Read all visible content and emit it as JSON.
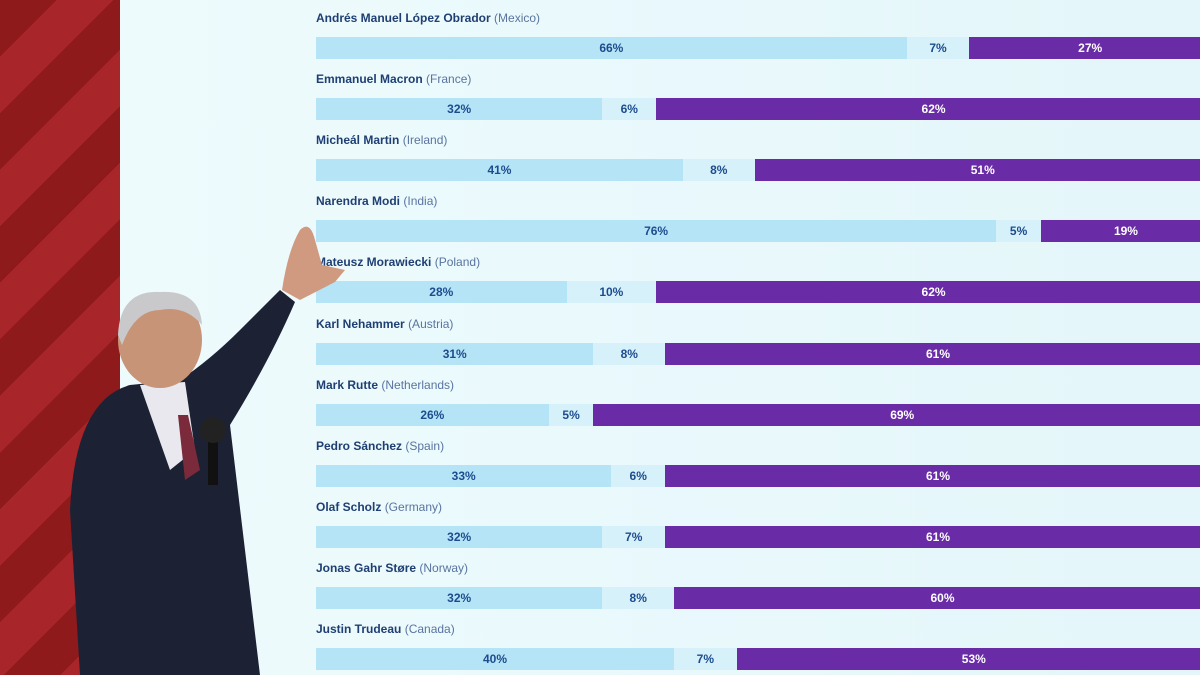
{
  "chart_data": {
    "type": "bar",
    "orientation": "horizontal",
    "stacked": true,
    "categories": [
      {
        "name": "Andrés Manuel López Obrador",
        "country": "(Mexico)"
      },
      {
        "name": "Emmanuel Macron",
        "country": "(France)"
      },
      {
        "name": "Micheál Martin",
        "country": "(Ireland)"
      },
      {
        "name": "Narendra Modi",
        "country": "(India)"
      },
      {
        "name": "Mateusz Morawiecki",
        "country": "(Poland)"
      },
      {
        "name": "Karl Nehammer",
        "country": "(Austria)"
      },
      {
        "name": "Mark Rutte",
        "country": "(Netherlands)"
      },
      {
        "name": "Pedro Sánchez",
        "country": "(Spain)"
      },
      {
        "name": "Olaf Scholz",
        "country": "(Germany)"
      },
      {
        "name": "Jonas Gahr Støre",
        "country": "(Norway)"
      },
      {
        "name": "Justin Trudeau",
        "country": "(Canada)"
      }
    ],
    "series": [
      {
        "values": [
          66,
          32,
          41,
          76,
          28,
          31,
          26,
          33,
          32,
          32,
          40
        ],
        "color": "#b5e4f7"
      },
      {
        "values": [
          7,
          6,
          8,
          5,
          10,
          8,
          5,
          6,
          7,
          8,
          7
        ],
        "color": "#d6f1fa"
      },
      {
        "values": [
          27,
          62,
          51,
          19,
          62,
          61,
          69,
          61,
          61,
          60,
          53
        ],
        "color": "#6a2ca6"
      }
    ],
    "value_suffix": "%",
    "xlim": [
      0,
      100
    ],
    "grid": false,
    "legend": "none"
  }
}
